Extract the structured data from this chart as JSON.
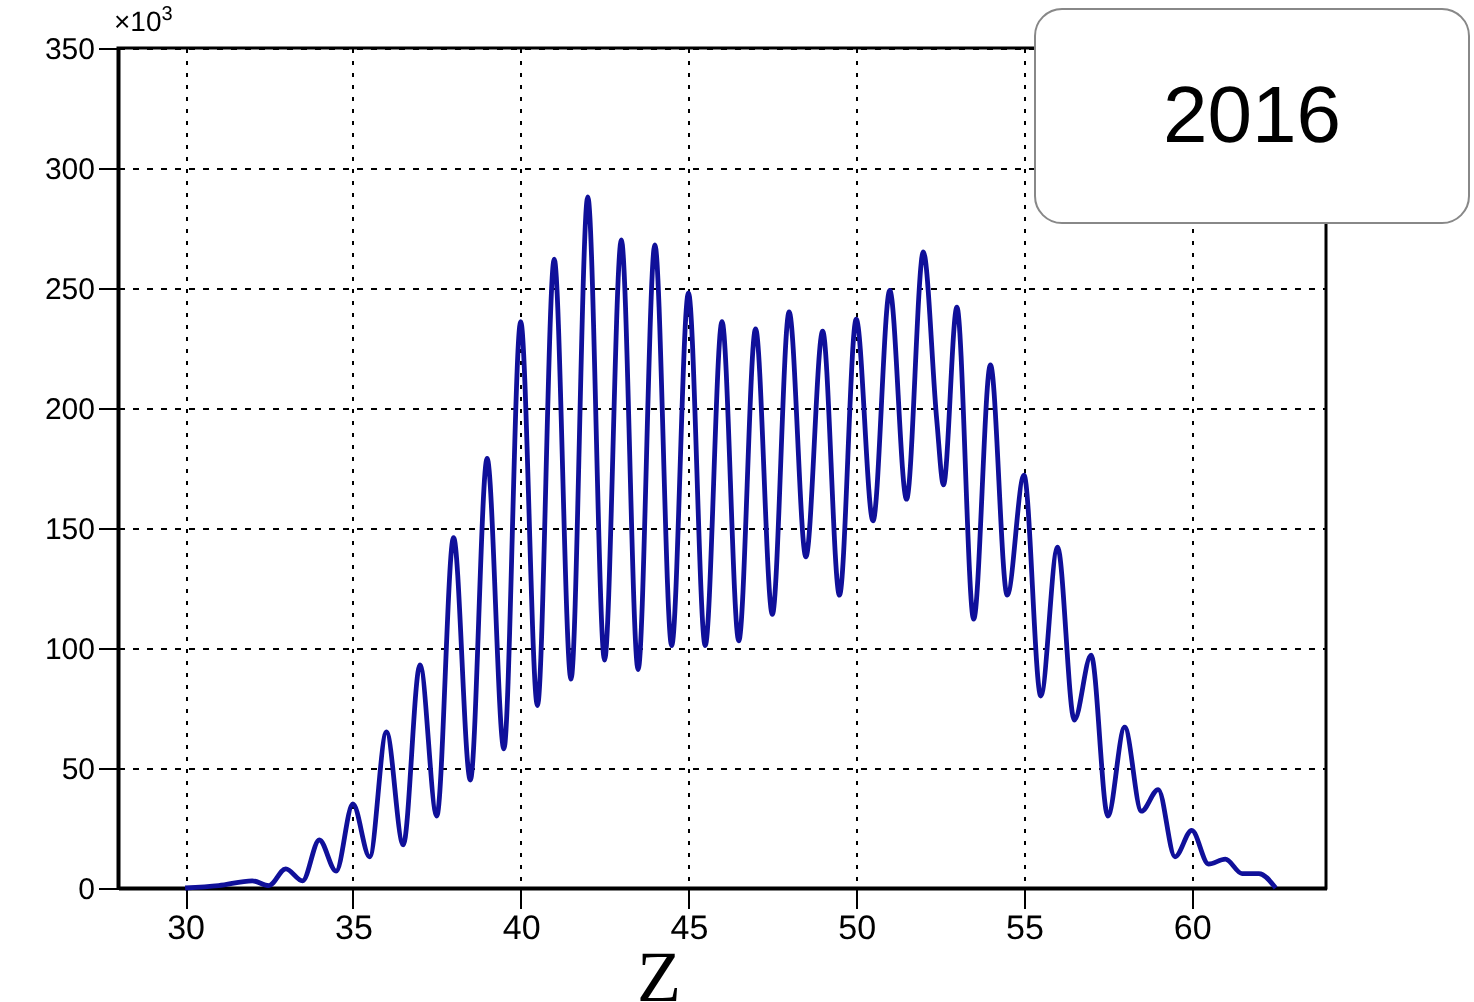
{
  "chart_data": {
    "type": "line",
    "title": "2016",
    "xlabel": "Z",
    "annotations": [
      "×10$^{3}$"
    ],
    "xlim": [
      28,
      64
    ],
    "xticks": [
      30,
      35,
      40,
      45,
      50,
      55,
      60
    ],
    "ylim": [
      0,
      350
    ],
    "yticks": [
      0,
      50,
      100,
      150,
      200,
      250,
      300,
      350
    ],
    "grid": true,
    "series": [
      {
        "color": "#10109a",
        "x": [
          30,
          31,
          32,
          32.5,
          33,
          33.5,
          34,
          34.5,
          35,
          35.5,
          36,
          36.5,
          37,
          37.5,
          38,
          38.5,
          39,
          39.5,
          40,
          40.5,
          41,
          41.5,
          42,
          42.5,
          43,
          43.5,
          44,
          44.5,
          45,
          45.5,
          46,
          46.5,
          47,
          47.5,
          48,
          48.5,
          49,
          49.5,
          50,
          50.5,
          51,
          51.5,
          52,
          52.4,
          52.6,
          53,
          53.5,
          54,
          54.5,
          55,
          55.5,
          56,
          56.5,
          57,
          57.5,
          58,
          58.5,
          59,
          59.5,
          60,
          60.5,
          61,
          61.5,
          62,
          62.5
        ],
        "values": [
          0,
          1,
          3,
          1,
          8,
          3,
          20,
          7,
          35,
          13,
          65,
          18,
          93,
          30,
          146,
          45,
          179,
          58,
          236,
          76,
          262,
          87,
          288,
          95,
          270,
          91,
          268,
          101,
          248,
          101,
          236,
          103,
          233,
          114,
          240,
          138,
          232,
          122,
          237,
          153,
          249,
          162,
          265,
          195,
          168,
          242,
          112,
          218,
          122,
          172,
          80,
          142,
          70,
          97,
          30,
          67,
          32,
          41,
          13,
          24,
          10,
          12,
          6,
          6,
          0
        ]
      }
    ]
  }
}
